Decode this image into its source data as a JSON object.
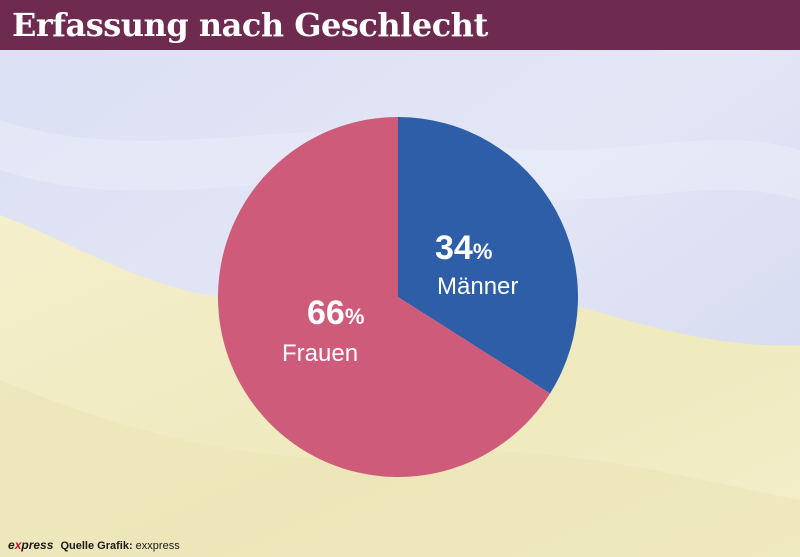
{
  "title": "Erfassung nach Geschlecht",
  "colors": {
    "header": "#6e2b4f",
    "flag_blue": "#d9def4",
    "flag_yellow": "#f2edc3",
    "maenner": "#2e5ea8",
    "frauen": "#cf5b7b"
  },
  "chart_data": {
    "type": "pie",
    "title": "Erfassung nach Geschlecht",
    "slices": [
      {
        "label": "Männer",
        "value": 34,
        "value_label": "34",
        "unit": "%",
        "color": "#2e5ea8"
      },
      {
        "label": "Frauen",
        "value": 66,
        "value_label": "66",
        "unit": "%",
        "color": "#cf5b7b"
      }
    ],
    "start": "top",
    "direction": "clockwise"
  },
  "footer": {
    "brand_prefix": "e",
    "brand_x": "x",
    "brand_suffix": "press",
    "source_label": "Quelle Grafik:",
    "source_name": "exxpress"
  }
}
